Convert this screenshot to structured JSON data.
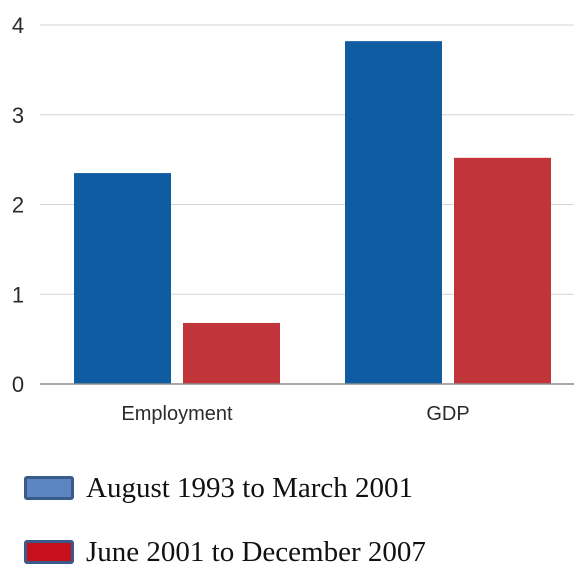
{
  "chart_data": {
    "type": "bar",
    "categories": [
      "Employment",
      "GDP"
    ],
    "series": [
      {
        "name": "August 1993 to March 2001",
        "values": [
          2.35,
          3.82
        ]
      },
      {
        "name": "June 2001 to December 2007",
        "values": [
          0.68,
          2.52
        ]
      }
    ],
    "ylim": [
      0,
      4
    ],
    "yticks": [
      "0",
      "1",
      "2",
      "3",
      "4"
    ],
    "grid": true,
    "legend_position": "bottom-left",
    "colors": {
      "series": [
        "#0f5ca3",
        "#c0343a"
      ],
      "legend_swatch_fill": [
        "#5b86c2",
        "#c8101c"
      ],
      "legend_swatch_border": "#3a5a8c",
      "grid": "#d4d4d4",
      "axis": "#8c8c8c"
    }
  },
  "legend": {
    "items": [
      {
        "label": "August 1993 to March 2001"
      },
      {
        "label": "June 2001 to December 2007"
      }
    ]
  }
}
